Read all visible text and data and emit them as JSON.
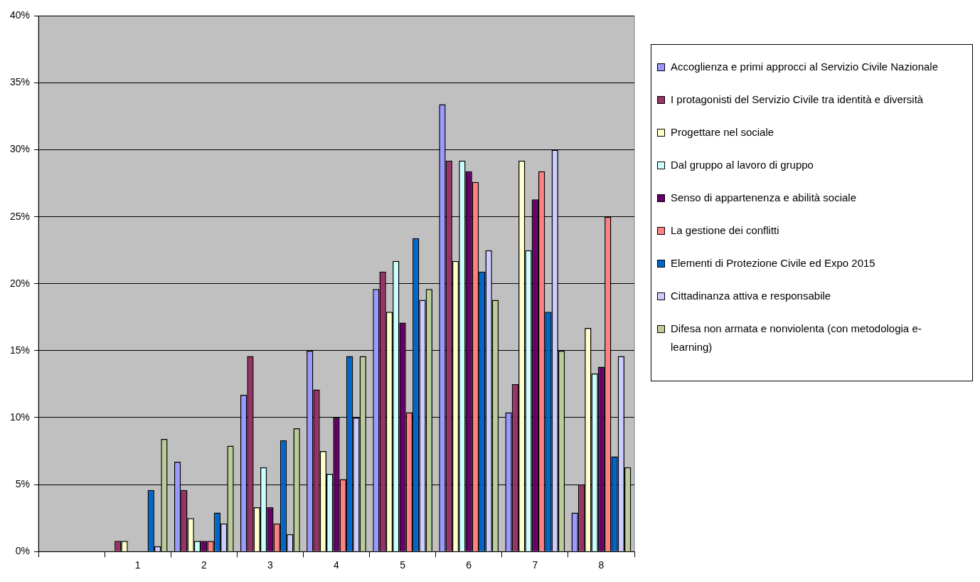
{
  "chart_data": {
    "type": "bar",
    "categories": [
      null,
      "1",
      "2",
      "3",
      "4",
      "5",
      "6",
      "7",
      "8"
    ],
    "series": [
      {
        "name": "Accoglienza e primi approcci al Servizio Civile Nazionale",
        "color": "#9999ff",
        "values": [
          null,
          0,
          6.7,
          11.7,
          15.0,
          19.6,
          33.4,
          10.4,
          2.9
        ]
      },
      {
        "name": "I protagonisti del Servizio Civile tra identità e diversità",
        "color": "#993366",
        "values": [
          null,
          0.8,
          4.6,
          14.6,
          12.1,
          20.9,
          29.2,
          12.5,
          5.0
        ]
      },
      {
        "name": "Progettare nel sociale",
        "color": "#ffffcc",
        "values": [
          null,
          0.8,
          2.5,
          3.3,
          7.5,
          17.9,
          21.7,
          29.2,
          16.7
        ]
      },
      {
        "name": "Dal gruppo al lavoro di gruppo",
        "color": "#ccffff",
        "values": [
          null,
          0,
          0.8,
          6.3,
          5.8,
          21.7,
          29.2,
          22.5,
          13.3
        ]
      },
      {
        "name": "Senso di appartenenza e abilità sociale",
        "color": "#660066",
        "values": [
          null,
          0,
          0.8,
          3.3,
          10.0,
          17.1,
          28.4,
          26.3,
          13.8
        ]
      },
      {
        "name": "La gestione dei conflitti",
        "color": "#ff8080",
        "values": [
          null,
          0,
          0.8,
          2.1,
          5.4,
          10.4,
          27.6,
          28.4,
          25.0
        ]
      },
      {
        "name": "Elementi di Protezione Civile ed Expo 2015",
        "color": "#0066cc",
        "values": [
          null,
          4.6,
          2.9,
          8.3,
          14.6,
          23.4,
          20.9,
          17.9,
          7.1
        ]
      },
      {
        "name": "Cittadinanza attiva e responsabile",
        "color": "#ccccff",
        "values": [
          null,
          0.4,
          2.1,
          1.3,
          10.0,
          18.8,
          22.5,
          30.0,
          14.6
        ]
      },
      {
        "name": "Difesa non armata e nonviolenta (con metodologia e-learning)",
        "color": "#bbcc99",
        "values": [
          null,
          8.4,
          7.9,
          9.2,
          14.6,
          19.6,
          18.8,
          15.0,
          6.3
        ]
      }
    ],
    "ylim": [
      0,
      40
    ],
    "yticks": [
      {
        "value": 0,
        "label": "0%"
      },
      {
        "value": 5,
        "label": "5%"
      },
      {
        "value": 10,
        "label": "10%"
      },
      {
        "value": 15,
        "label": "15%"
      },
      {
        "value": 20,
        "label": "20%"
      },
      {
        "value": 25,
        "label": "25%"
      },
      {
        "value": 30,
        "label": "30%"
      },
      {
        "value": 35,
        "label": "35%"
      },
      {
        "value": 40,
        "label": "40%"
      }
    ],
    "grid": "y",
    "legend": "right"
  }
}
